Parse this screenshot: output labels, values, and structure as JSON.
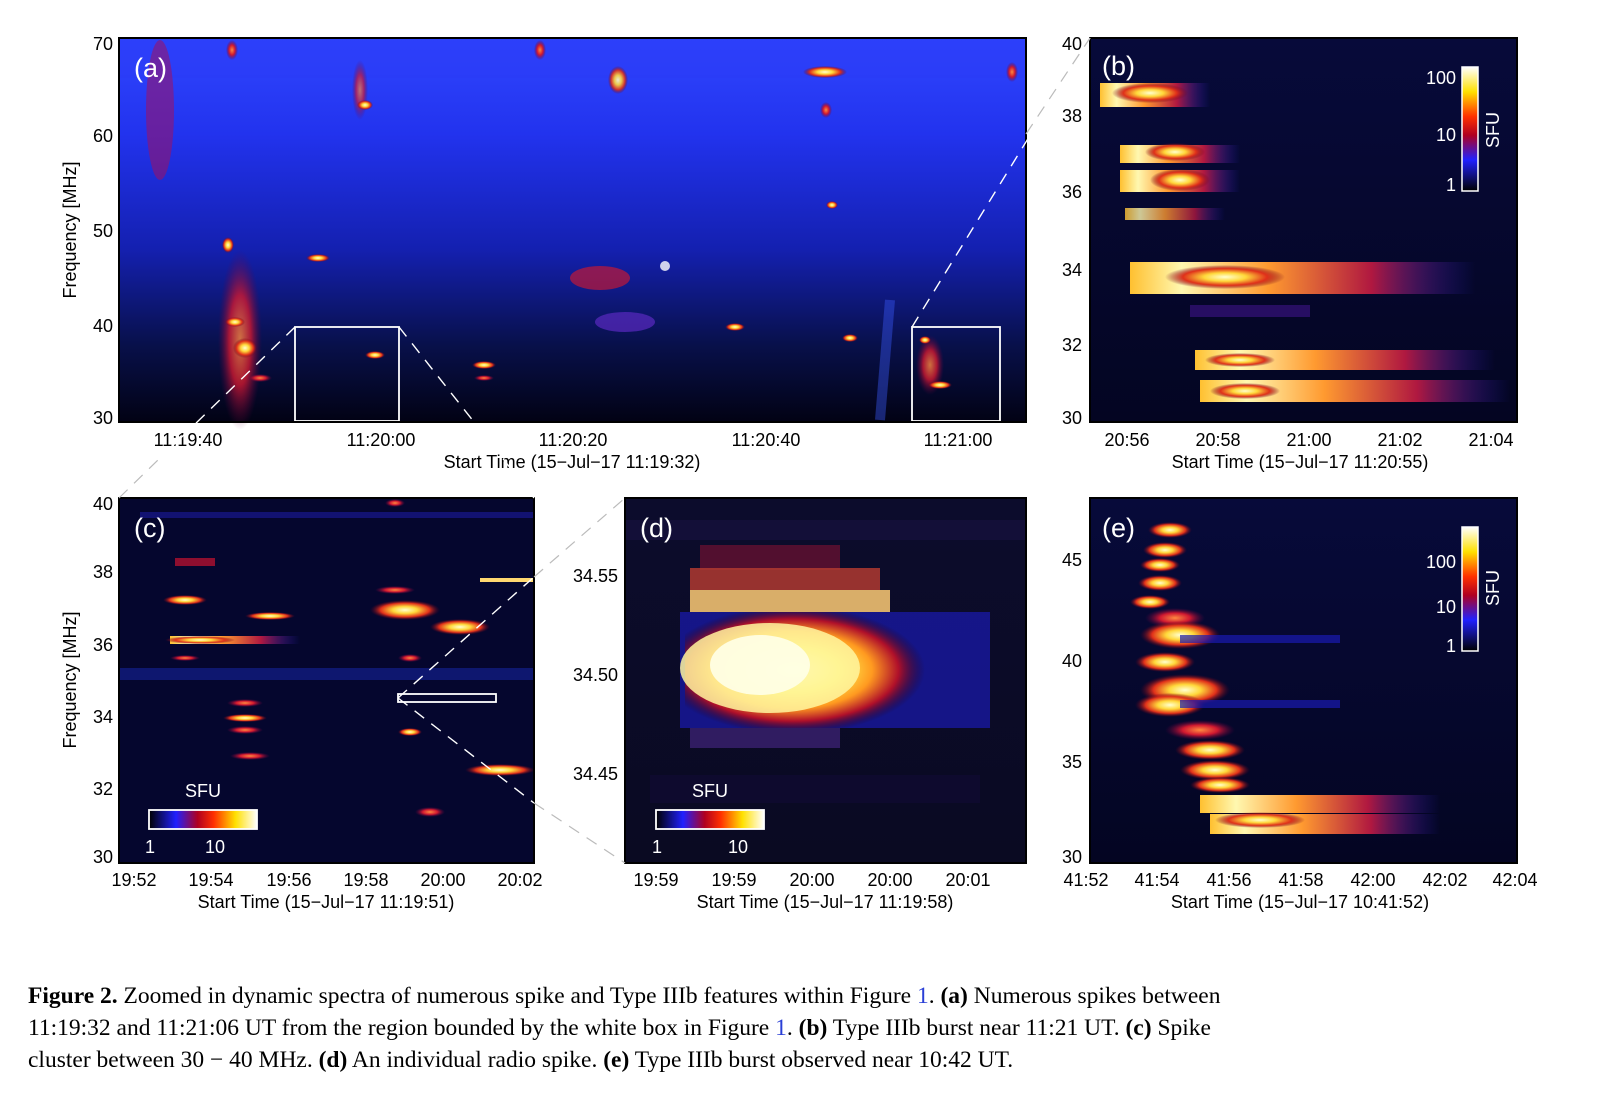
{
  "panels": [
    {
      "id": "a",
      "letter": "(a)",
      "ylabel": "Frequency [MHz]",
      "yticks": [
        "70",
        "60",
        "50",
        "40",
        "30"
      ],
      "xticks": [
        "11:19:40",
        "11:20:00",
        "11:20:20",
        "11:20:40",
        "11:21:00"
      ],
      "xtitle": "Start Time (15−Jul−17 11:19:32)"
    },
    {
      "id": "b",
      "letter": "(b)",
      "yticks": [
        "40",
        "38",
        "36",
        "34",
        "32",
        "30"
      ],
      "xticks": [
        "20:56",
        "20:58",
        "21:00",
        "21:02",
        "21:04"
      ],
      "xtitle": "Start Time (15−Jul−17 11:20:55)",
      "colorbar": {
        "label": "SFU",
        "ticks": [
          "100",
          "10",
          "1"
        ]
      }
    },
    {
      "id": "c",
      "letter": "(c)",
      "ylabel": "Frequency [MHz]",
      "yticks": [
        "40",
        "38",
        "36",
        "34",
        "32",
        "30"
      ],
      "xticks": [
        "19:52",
        "19:54",
        "19:56",
        "19:58",
        "20:00",
        "20:02"
      ],
      "xtitle": "Start Time (15−Jul−17 11:19:51)",
      "colorbar": {
        "label": "SFU",
        "ticks": [
          "1",
          "10"
        ]
      }
    },
    {
      "id": "d",
      "letter": "(d)",
      "yticks": [
        "34.55",
        "34.50",
        "34.45"
      ],
      "xticks": [
        "19:59",
        "19:59",
        "20:00",
        "20:00",
        "20:01"
      ],
      "xtitle": "Start Time (15−Jul−17 11:19:58)",
      "colorbar": {
        "label": "SFU",
        "ticks": [
          "1",
          "10"
        ]
      }
    },
    {
      "id": "e",
      "letter": "(e)",
      "yticks": [
        "45",
        "40",
        "35",
        "30"
      ],
      "xticks": [
        "41:52",
        "41:54",
        "41:56",
        "41:58",
        "42:00",
        "42:02",
        "42:04"
      ],
      "xtitle": "Start Time (15−Jul−17 10:41:52)",
      "colorbar": {
        "label": "SFU",
        "ticks": [
          "100",
          "10",
          "1"
        ]
      }
    }
  ],
  "caption": {
    "label": "Figure 2.",
    "line1_a": " Zoomed in dynamic spectra of numerous spike and Type IIIb features within Figure ",
    "ref1": "1",
    "line1_b": ". ",
    "a_tag": "(a)",
    "a_text1": " Numerous spikes between",
    "a_text2": "11:19:32 and 11:21:06 UT from the region bounded by the white box in Figure ",
    "ref2": "1",
    "a_text3": ". ",
    "b_tag": "(b)",
    "b_text": " Type IIIb burst near 11:21 UT. ",
    "c_tag": "(c)",
    "c_text1": " Spike",
    "c_text2": "cluster between 30 − 40 MHz. ",
    "d_tag": "(d)",
    "d_text": " An individual radio spike. ",
    "e_tag": "(e)",
    "e_text": " Type IIIb burst observed near 10:42 UT."
  },
  "colors": {
    "background_dark": "#05052a",
    "spectrum_blue": "#1e2ad8",
    "hot": "#ffd84a"
  }
}
